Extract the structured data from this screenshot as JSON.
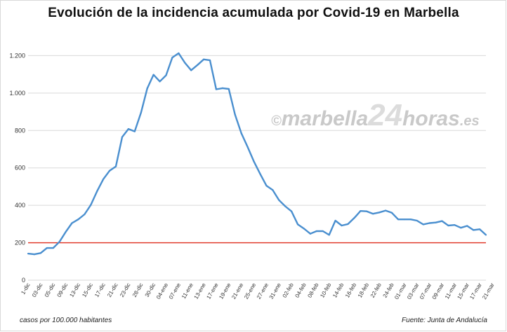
{
  "title": "Evolución de la incidencia acumulada por Covid-19 en Marbella",
  "footer_left": "casos por 100.000 habitantes",
  "footer_right": "Fuente: Junta de Andalucía",
  "watermark": {
    "copyright": "©",
    "part1": "marbella",
    "part2": "24",
    "part3": "horas",
    "part4": ".es"
  },
  "colors": {
    "line": "#4a8fcf",
    "threshold": "#e03020",
    "grid": "#d9d9d9",
    "text": "#333333",
    "watermark": "#c9c9c9"
  },
  "chart_data": {
    "type": "line",
    "title": "Evolución de la incidencia acumulada por Covid-19 en Marbella",
    "xlabel": "",
    "ylabel": "",
    "ylim": [
      0,
      1400
    ],
    "yticks": [
      0,
      200,
      400,
      600,
      800,
      1000,
      1200
    ],
    "ytick_labels": [
      "0",
      "200",
      "400",
      "600",
      "800",
      "1.000",
      "1.200"
    ],
    "grid": "horizontal",
    "threshold": 200,
    "x_tick_labels": [
      "1-dic",
      "03-dic",
      "05-dic",
      "09-dic",
      "13-dic",
      "15-dic",
      "17-dic",
      "21-dic",
      "23-dic",
      "28-dic",
      "30-dic",
      "04-ene",
      "07-ene",
      "11-ene",
      "13-ene",
      "17-ene",
      "19-ene",
      "21-ene",
      "25-ene",
      "27-ene",
      "31-ene",
      "02-feb",
      "04-feb",
      "08-feb",
      "10-feb",
      "14-feb",
      "16-feb",
      "18-feb",
      "22-feb",
      "24-feb",
      "01-mar",
      "03-mar",
      "07-mar",
      "09-mar",
      "11-mar",
      "15-mar",
      "17-mar",
      "21-mar"
    ],
    "values": [
      142,
      138,
      145,
      172,
      172,
      205,
      258,
      305,
      325,
      352,
      402,
      475,
      540,
      585,
      608,
      765,
      808,
      795,
      895,
      1025,
      1098,
      1062,
      1095,
      1190,
      1213,
      1162,
      1122,
      1150,
      1180,
      1175,
      1020,
      1026,
      1022,
      885,
      785,
      712,
      635,
      568,
      505,
      482,
      428,
      395,
      368,
      298,
      275,
      248,
      262,
      262,
      242,
      318,
      292,
      300,
      332,
      370,
      368,
      355,
      362,
      372,
      360,
      325,
      325,
      325,
      318,
      298,
      305,
      308,
      316,
      292,
      295,
      280,
      290,
      268,
      272,
      242
    ]
  }
}
